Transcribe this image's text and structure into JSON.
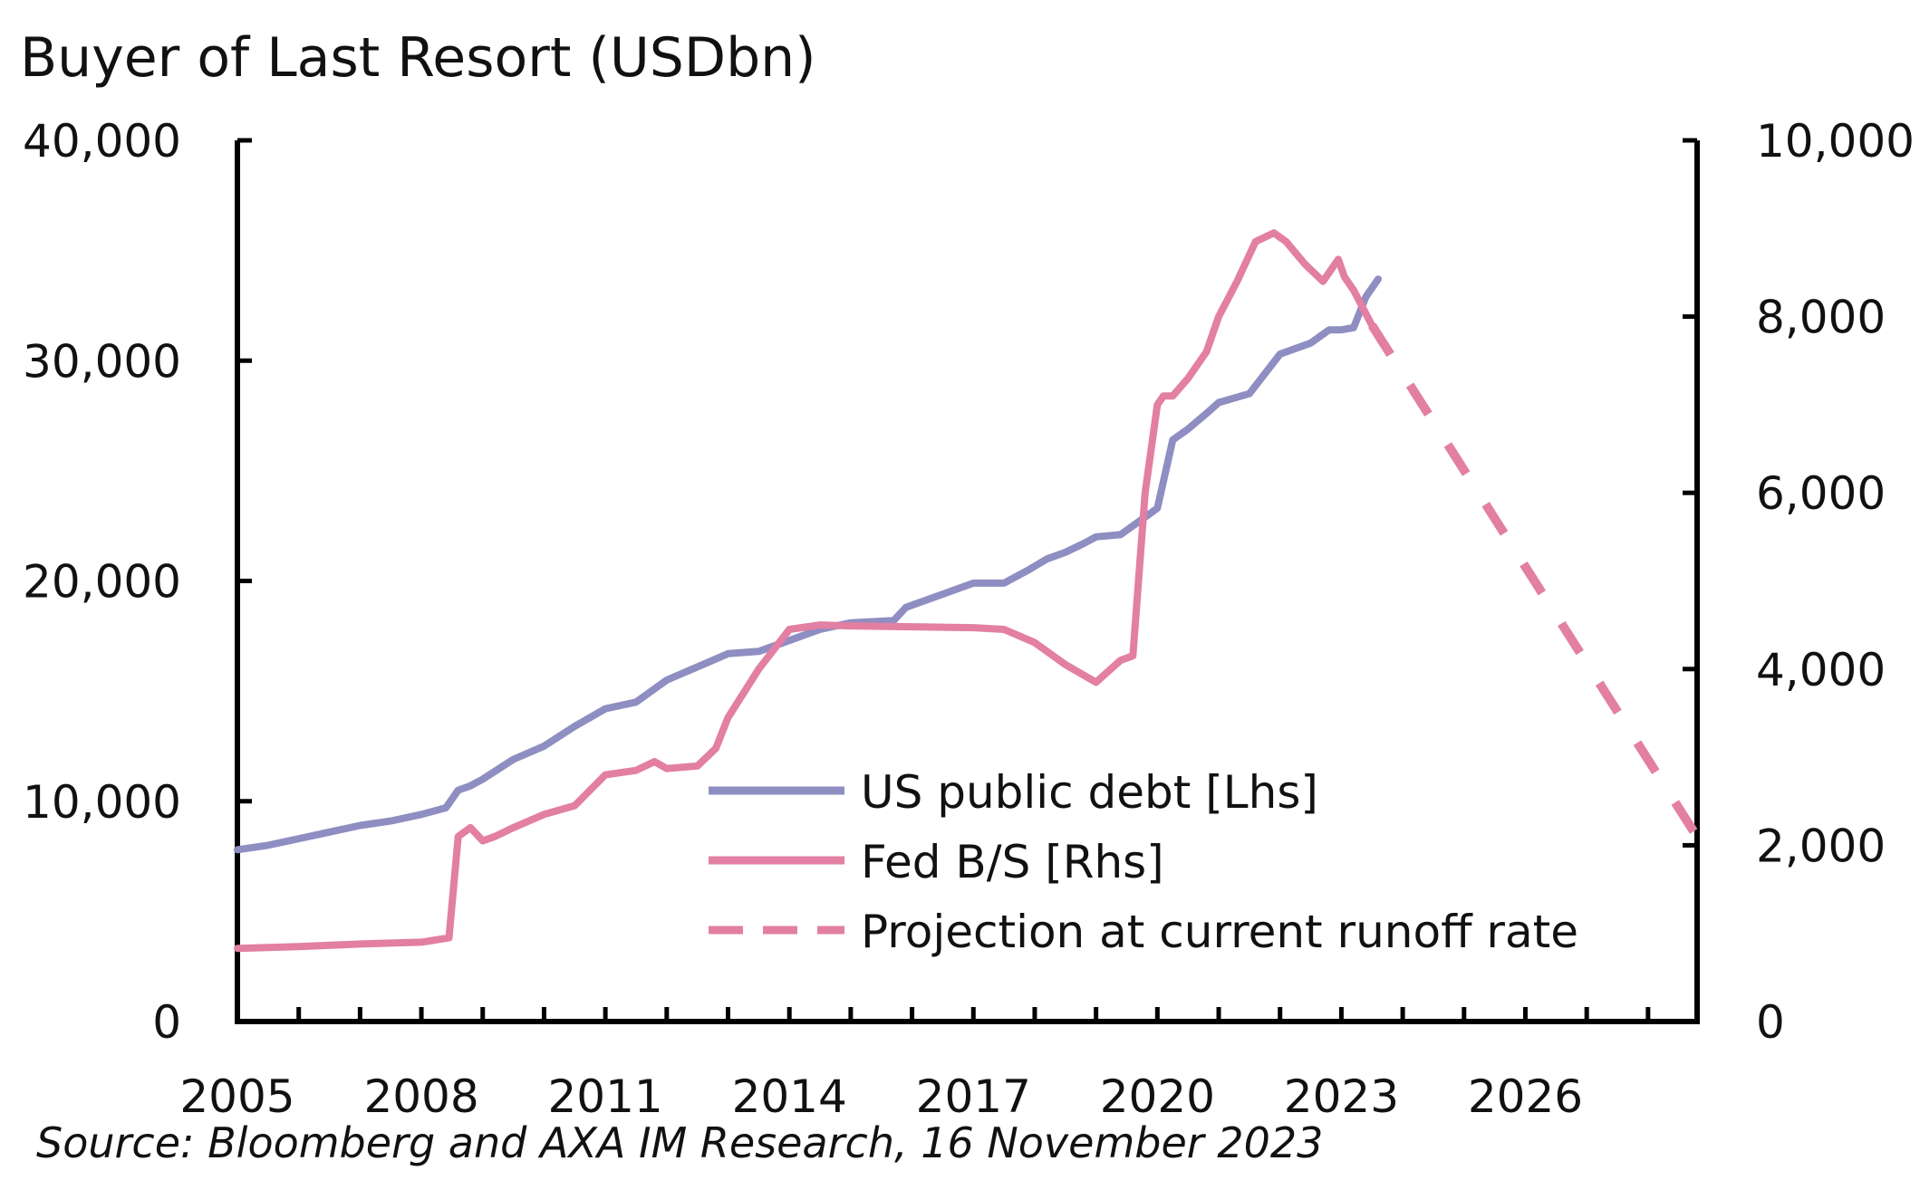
{
  "chart_data": {
    "type": "line",
    "title": "Buyer of Last Resort (USDbn)",
    "source": "Source: Bloomberg and AXA IM Research, 16 November 2023",
    "x_ticks": [
      "2005",
      "2008",
      "2011",
      "2014",
      "2017",
      "2020",
      "2023",
      "2026"
    ],
    "x_range": [
      2005,
      2028.8
    ],
    "y_left": {
      "range": [
        0,
        40000
      ],
      "ticks": [
        "0",
        "10,000",
        "20,000",
        "30,000",
        "40,000"
      ]
    },
    "y_right": {
      "range": [
        0,
        10000
      ],
      "ticks": [
        "0",
        "2,000",
        "4,000",
        "6,000",
        "8,000",
        "10,000"
      ]
    },
    "colors": {
      "debt": "#8f8ec2",
      "fed": "#e27fa2"
    },
    "legend_placement": "bottom-center",
    "series": [
      {
        "name": "US public debt [Lhs]",
        "axis": "left",
        "style": "solid",
        "x": [
          2005.0,
          2005.5,
          2006.0,
          2006.5,
          2007.0,
          2007.5,
          2008.0,
          2008.4,
          2008.6,
          2008.8,
          2009.0,
          2009.5,
          2010.0,
          2010.5,
          2011.0,
          2011.5,
          2012.0,
          2012.5,
          2013.0,
          2013.5,
          2014.0,
          2014.5,
          2015.0,
          2015.7,
          2015.9,
          2016.5,
          2017.0,
          2017.5,
          2017.9,
          2018.2,
          2018.5,
          2018.8,
          2019.0,
          2019.4,
          2019.8,
          2020.0,
          2020.25,
          2020.5,
          2020.8,
          2021.0,
          2021.5,
          2022.0,
          2022.5,
          2022.8,
          2023.0,
          2023.2,
          2023.4,
          2023.6
        ],
        "y": [
          7800,
          8000,
          8300,
          8600,
          8900,
          9100,
          9400,
          9700,
          10500,
          10700,
          11000,
          11900,
          12500,
          13400,
          14200,
          14500,
          15500,
          16100,
          16700,
          16800,
          17300,
          17800,
          18100,
          18200,
          18800,
          19400,
          19900,
          19900,
          20500,
          21000,
          21300,
          21700,
          22000,
          22100,
          22900,
          23300,
          26400,
          26900,
          27600,
          28100,
          28500,
          30300,
          30800,
          31400,
          31400,
          31500,
          32900,
          33700
        ]
      },
      {
        "name": "Fed B/S [Rhs]",
        "axis": "right",
        "style": "solid",
        "x": [
          2005.0,
          2006.0,
          2007.0,
          2008.0,
          2008.45,
          2008.6,
          2008.8,
          2009.0,
          2009.2,
          2009.5,
          2010.0,
          2010.5,
          2011.0,
          2011.5,
          2011.8,
          2012.0,
          2012.5,
          2012.8,
          2013.0,
          2013.5,
          2014.0,
          2014.5,
          2015.0,
          2016.0,
          2017.0,
          2017.5,
          2018.0,
          2018.5,
          2019.0,
          2019.4,
          2019.6,
          2019.8,
          2020.0,
          2020.1,
          2020.25,
          2020.5,
          2020.8,
          2021.0,
          2021.3,
          2021.6,
          2021.9,
          2022.1,
          2022.4,
          2022.7,
          2022.95,
          2023.05,
          2023.2,
          2023.5
        ],
        "y": [
          830,
          850,
          880,
          900,
          950,
          2100,
          2200,
          2050,
          2100,
          2200,
          2350,
          2450,
          2800,
          2850,
          2950,
          2870,
          2900,
          3100,
          3450,
          4000,
          4450,
          4500,
          4490,
          4480,
          4470,
          4450,
          4300,
          4050,
          3850,
          4100,
          4150,
          6000,
          7000,
          7100,
          7100,
          7300,
          7600,
          8000,
          8400,
          8850,
          8950,
          8850,
          8600,
          8400,
          8650,
          8450,
          8300,
          7900
        ]
      },
      {
        "name": "Projection at current runoff rate",
        "axis": "right",
        "style": "dashed",
        "x": [
          2023.5,
          2028.75
        ],
        "y": [
          7900,
          2150
        ]
      }
    ]
  }
}
